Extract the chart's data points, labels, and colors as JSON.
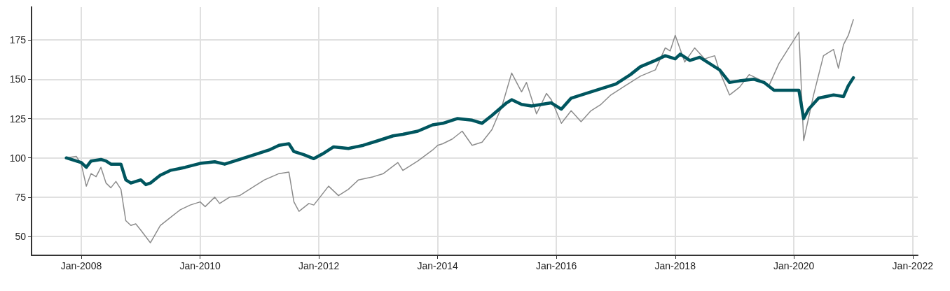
{
  "chart_data": {
    "type": "line",
    "xlim": [
      "2007-03",
      "2022-02"
    ],
    "ylim": [
      38,
      196
    ],
    "xticks": [
      {
        "value": "2008-01",
        "label": "Jan-2008"
      },
      {
        "value": "2010-01",
        "label": "Jan-2010"
      },
      {
        "value": "2012-01",
        "label": "Jan-2012"
      },
      {
        "value": "2014-01",
        "label": "Jan-2014"
      },
      {
        "value": "2016-01",
        "label": "Jan-2016"
      },
      {
        "value": "2018-01",
        "label": "Jan-2018"
      },
      {
        "value": "2020-01",
        "label": "Jan-2020"
      },
      {
        "value": "2022-01",
        "label": "Jan-2022"
      }
    ],
    "yticks": [
      50,
      75,
      100,
      125,
      150,
      175
    ],
    "grid": true,
    "marker": "none",
    "line_style": "solid",
    "series": [
      {
        "color": "#8c8c8c",
        "x": [
          "2007-10",
          "2007-12",
          "2008-01",
          "2008-02",
          "2008-03",
          "2008-04",
          "2008-05",
          "2008-06",
          "2008-07",
          "2008-08",
          "2008-09",
          "2008-10",
          "2008-11",
          "2008-12",
          "2009-01",
          "2009-03",
          "2009-05",
          "2009-07",
          "2009-09",
          "2009-11",
          "2010-01",
          "2010-02",
          "2010-04",
          "2010-05",
          "2010-07",
          "2010-09",
          "2010-12",
          "2011-02",
          "2011-05",
          "2011-07",
          "2011-08",
          "2011-09",
          "2011-11",
          "2011-12",
          "2012-03",
          "2012-05",
          "2012-07",
          "2012-09",
          "2012-12",
          "2013-02",
          "2013-05",
          "2013-06",
          "2013-09",
          "2013-12",
          "2014-01",
          "2014-02",
          "2014-04",
          "2014-06",
          "2014-08",
          "2014-10",
          "2014-12",
          "2015-02",
          "2015-04",
          "2015-06",
          "2015-07",
          "2015-09",
          "2015-11",
          "2015-12",
          "2016-02",
          "2016-04",
          "2016-06",
          "2016-08",
          "2016-10",
          "2016-12",
          "2017-03",
          "2017-06",
          "2017-09",
          "2017-11",
          "2017-12",
          "2018-01",
          "2018-03",
          "2018-05",
          "2018-07",
          "2018-09",
          "2018-10",
          "2018-12",
          "2019-02",
          "2019-04",
          "2019-06",
          "2019-08",
          "2019-10",
          "2019-12",
          "2020-02",
          "2020-03",
          "2020-05",
          "2020-07",
          "2020-09",
          "2020-10",
          "2020-11",
          "2020-12",
          "2021-01"
        ],
        "values": [
          100,
          101,
          96,
          82,
          90,
          88,
          94,
          84,
          81,
          85,
          80,
          60,
          57,
          58,
          54,
          46,
          57,
          62,
          67,
          70,
          72,
          69,
          75,
          71,
          75,
          76,
          82,
          86,
          90,
          91,
          72,
          66,
          71,
          70,
          82,
          76,
          80,
          86,
          88,
          90,
          97,
          92,
          98,
          105,
          108,
          109,
          112,
          117,
          108,
          110,
          118,
          133,
          154,
          142,
          148,
          128,
          141,
          137,
          122,
          130,
          123,
          130,
          134,
          140,
          146,
          152,
          156,
          170,
          168,
          178,
          161,
          170,
          163,
          165,
          155,
          140,
          145,
          153,
          150,
          146,
          160,
          170,
          180,
          111,
          140,
          165,
          169,
          157,
          172,
          178,
          188
        ]
      },
      {
        "color": "#00565f",
        "x": [
          "2007-10",
          "2007-12",
          "2008-01",
          "2008-02",
          "2008-03",
          "2008-05",
          "2008-06",
          "2008-07",
          "2008-09",
          "2008-10",
          "2008-11",
          "2009-01",
          "2009-02",
          "2009-03",
          "2009-05",
          "2009-07",
          "2009-10",
          "2010-01",
          "2010-04",
          "2010-06",
          "2010-09",
          "2010-12",
          "2011-03",
          "2011-05",
          "2011-07",
          "2011-08",
          "2011-10",
          "2011-12",
          "2012-02",
          "2012-04",
          "2012-07",
          "2012-10",
          "2013-01",
          "2013-04",
          "2013-06",
          "2013-09",
          "2013-12",
          "2014-02",
          "2014-05",
          "2014-08",
          "2014-10",
          "2014-12",
          "2015-03",
          "2015-04",
          "2015-06",
          "2015-08",
          "2015-10",
          "2015-12",
          "2016-02",
          "2016-04",
          "2016-07",
          "2016-10",
          "2017-01",
          "2017-04",
          "2017-06",
          "2017-09",
          "2017-11",
          "2018-01",
          "2018-02",
          "2018-04",
          "2018-06",
          "2018-08",
          "2018-10",
          "2018-12",
          "2019-02",
          "2019-05",
          "2019-07",
          "2019-09",
          "2019-12",
          "2020-02",
          "2020-03",
          "2020-04",
          "2020-06",
          "2020-09",
          "2020-11",
          "2020-12",
          "2021-01"
        ],
        "values": [
          100,
          98,
          97,
          94,
          98,
          99,
          98,
          96,
          96,
          86,
          84,
          86,
          83,
          84,
          89,
          92,
          94,
          96.5,
          97.5,
          96,
          99,
          102,
          105,
          108,
          109,
          104,
          102,
          99.5,
          103,
          107,
          106,
          108,
          111,
          114,
          115,
          117,
          121,
          122,
          125,
          124,
          122,
          127,
          135,
          137,
          134,
          133,
          134,
          135,
          131,
          138,
          141,
          144,
          147,
          153,
          158,
          162,
          165,
          163,
          166,
          162,
          164,
          160,
          156,
          148,
          149,
          150,
          148,
          143,
          143,
          143,
          125,
          131,
          138,
          140,
          139,
          146,
          151
        ]
      }
    ]
  }
}
